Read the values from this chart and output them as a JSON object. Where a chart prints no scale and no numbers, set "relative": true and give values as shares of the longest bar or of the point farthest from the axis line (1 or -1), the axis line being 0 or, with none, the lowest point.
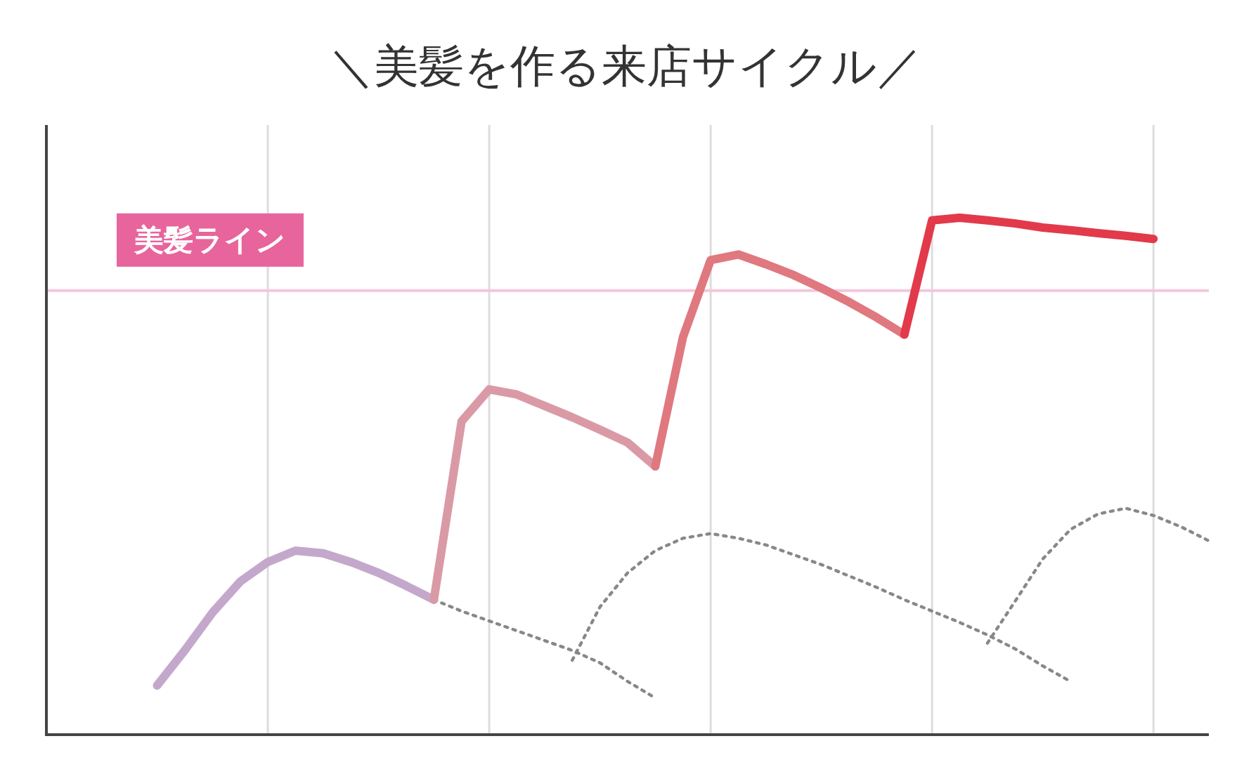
{
  "chart_data": {
    "type": "line",
    "title": "＼美髪を作る来店サイクル／",
    "relative": true,
    "categories": [
      null,
      null,
      null,
      null,
      null,
      null,
      null,
      null,
      null,
      null,
      null,
      null,
      null,
      null,
      null,
      null,
      null,
      null,
      null,
      null,
      null,
      null,
      null,
      null,
      null,
      null,
      null,
      null,
      null,
      null,
      null,
      null,
      null,
      null,
      null,
      null,
      null,
      null,
      null,
      null,
      null,
      null,
      null
    ],
    "grid": "x",
    "marker": "none",
    "ref_lines": [
      {
        "axis": "y",
        "value": 0.859,
        "label": "美髪ライン",
        "color": "#f4c6dc"
      }
    ],
    "series": [
      {
        "color": "#c4a8cc",
        "line_style": "solid",
        "values": [
          null,
          null,
          null,
          null,
          0.095,
          0.163,
          0.236,
          0.296,
          0.334,
          0.356,
          0.351,
          0.334,
          0.313,
          0.288,
          0.261,
          null,
          null,
          null,
          null,
          null,
          null,
          null,
          null,
          null,
          null,
          null,
          null,
          null,
          null,
          null,
          null,
          null,
          null,
          null,
          null,
          null,
          null,
          null,
          null,
          null,
          null,
          null,
          null
        ]
      },
      {
        "color": "#d99aa6",
        "line_style": "solid",
        "values": [
          null,
          null,
          null,
          null,
          null,
          null,
          null,
          null,
          null,
          null,
          null,
          null,
          null,
          null,
          0.261,
          0.606,
          0.668,
          0.658,
          0.636,
          0.614,
          0.59,
          0.565,
          0.519,
          null,
          null,
          null,
          null,
          null,
          null,
          null,
          null,
          null,
          null,
          null,
          null,
          null,
          null,
          null,
          null,
          null,
          null,
          null,
          null
        ]
      },
      {
        "color": "#e07880",
        "line_style": "solid",
        "values": [
          null,
          null,
          null,
          null,
          null,
          null,
          null,
          null,
          null,
          null,
          null,
          null,
          null,
          null,
          null,
          null,
          null,
          null,
          null,
          null,
          null,
          null,
          0.519,
          0.769,
          0.918,
          0.929,
          0.91,
          0.889,
          0.864,
          0.837,
          0.807,
          0.774,
          null,
          null,
          null,
          null,
          null,
          null,
          null,
          null,
          null,
          null,
          null
        ]
      },
      {
        "color": "#e23a4a",
        "line_style": "solid",
        "values": [
          null,
          null,
          null,
          null,
          null,
          null,
          null,
          null,
          null,
          null,
          null,
          null,
          null,
          null,
          null,
          null,
          null,
          null,
          null,
          null,
          null,
          null,
          null,
          null,
          null,
          null,
          null,
          null,
          null,
          null,
          null,
          0.774,
          0.995,
          1.0,
          0.995,
          0.989,
          0.981,
          0.976,
          0.97,
          0.965,
          0.959,
          null,
          null
        ]
      },
      {
        "color": "#888888",
        "line_style": "dotted",
        "values": [
          null,
          null,
          null,
          null,
          null,
          null,
          null,
          null,
          null,
          null,
          null,
          null,
          null,
          null,
          0.261,
          0.239,
          0.22,
          0.201,
          0.182,
          0.163,
          0.139,
          0.103,
          0.071,
          null,
          null,
          null,
          null,
          null,
          null,
          null,
          null,
          null,
          null,
          null,
          null,
          null,
          null,
          null,
          null,
          null,
          null,
          null,
          null
        ]
      },
      {
        "color": "#888888",
        "line_style": "dotted",
        "values": [
          null,
          null,
          null,
          null,
          null,
          null,
          null,
          null,
          null,
          null,
          null,
          null,
          null,
          null,
          null,
          null,
          null,
          null,
          null,
          0.144,
          0.247,
          0.313,
          0.356,
          0.38,
          0.389,
          0.38,
          0.367,
          0.348,
          0.329,
          0.307,
          0.285,
          0.261,
          0.239,
          0.217,
          0.193,
          0.166,
          0.133,
          0.103,
          null,
          null,
          null,
          null,
          null
        ]
      },
      {
        "color": "#888888",
        "line_style": "dotted",
        "values": [
          null,
          null,
          null,
          null,
          null,
          null,
          null,
          null,
          null,
          null,
          null,
          null,
          null,
          null,
          null,
          null,
          null,
          null,
          null,
          null,
          null,
          null,
          null,
          null,
          null,
          null,
          null,
          null,
          null,
          null,
          null,
          null,
          null,
          null,
          0.177,
          0.258,
          0.34,
          0.397,
          0.427,
          0.438,
          0.424,
          0.402,
          0.375
        ]
      }
    ]
  }
}
